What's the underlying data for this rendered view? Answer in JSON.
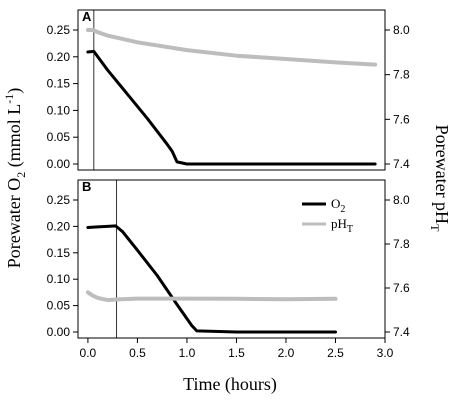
{
  "figure": {
    "y_left_label_main": "Porewater O",
    "y_left_label_sub": "2",
    "y_left_label_unit": " (mmol L",
    "y_left_label_sup": "-1",
    "y_left_label_end": ")",
    "y_right_label_main": "Porewater pH",
    "y_right_label_sub": "T",
    "x_label": "Time (hours)",
    "legend": {
      "o2_main": "O",
      "o2_sub": "2",
      "ph_main": "pH",
      "ph_sub": "T",
      "o2_color": "#000000",
      "ph_color": "#bdbdbd"
    }
  },
  "chart_data": [
    {
      "panel": "A",
      "type": "line",
      "xlabel": "Time (hours)",
      "ylabel": "Porewater O2 (mmol L-1)",
      "y2label": "Porewater pHT",
      "xlim": [
        -0.1,
        3.0
      ],
      "ylim": [
        0,
        0.25
      ],
      "y2lim": [
        7.4,
        8.0
      ],
      "xticks": [
        "0.0",
        "0.5",
        "1.0",
        "1.5",
        "2.0",
        "2.5",
        "3.0"
      ],
      "yticks": [
        "0.00",
        "0.05",
        "0.10",
        "0.15",
        "0.20",
        "0.25"
      ],
      "y2ticks": [
        "7.4",
        "7.6",
        "7.8",
        "8.0"
      ],
      "vline_x": 0.06,
      "series": [
        {
          "name": "O2",
          "axis": "left",
          "color": "#000000",
          "x": [
            0.0,
            0.06,
            0.2,
            0.4,
            0.6,
            0.8,
            0.85,
            0.9,
            1.0,
            1.5,
            2.0,
            2.5,
            2.9
          ],
          "y": [
            0.209,
            0.21,
            0.175,
            0.13,
            0.085,
            0.037,
            0.024,
            0.004,
            0.0,
            0.0,
            0.0,
            0.0,
            0.0
          ]
        },
        {
          "name": "pHT",
          "axis": "right",
          "color": "#bdbdbd",
          "x": [
            0.0,
            0.05,
            0.1,
            0.2,
            0.3,
            0.5,
            1.0,
            1.5,
            2.0,
            2.5,
            2.9
          ],
          "y": [
            8.0,
            8.0,
            7.99,
            7.975,
            7.965,
            7.945,
            7.91,
            7.885,
            7.87,
            7.855,
            7.845
          ]
        }
      ]
    },
    {
      "panel": "B",
      "type": "line",
      "xlabel": "Time (hours)",
      "ylabel": "Porewater O2 (mmol L-1)",
      "y2label": "Porewater pHT",
      "xlim": [
        -0.1,
        3.0
      ],
      "ylim": [
        0,
        0.25
      ],
      "y2lim": [
        7.4,
        8.0
      ],
      "xticks": [
        "0.0",
        "0.5",
        "1.0",
        "1.5",
        "2.0",
        "2.5",
        "3.0"
      ],
      "yticks": [
        "0.00",
        "0.05",
        "0.10",
        "0.15",
        "0.20",
        "0.25"
      ],
      "y2ticks": [
        "7.4",
        "7.6",
        "7.8",
        "8.0"
      ],
      "vline_x": 0.29,
      "series": [
        {
          "name": "O2",
          "axis": "left",
          "color": "#000000",
          "x": [
            0.0,
            0.1,
            0.2,
            0.28,
            0.35,
            0.5,
            0.7,
            0.9,
            1.05,
            1.1,
            1.5,
            2.0,
            2.5
          ],
          "y": [
            0.198,
            0.199,
            0.2,
            0.201,
            0.19,
            0.155,
            0.107,
            0.052,
            0.012,
            0.002,
            0.0,
            0.0,
            0.0
          ]
        },
        {
          "name": "pHT",
          "axis": "right",
          "color": "#bdbdbd",
          "x": [
            0.0,
            0.05,
            0.1,
            0.2,
            0.3,
            0.5,
            1.0,
            1.5,
            2.0,
            2.5
          ],
          "y": [
            7.58,
            7.565,
            7.555,
            7.545,
            7.548,
            7.552,
            7.552,
            7.551,
            7.549,
            7.551
          ]
        }
      ]
    }
  ]
}
